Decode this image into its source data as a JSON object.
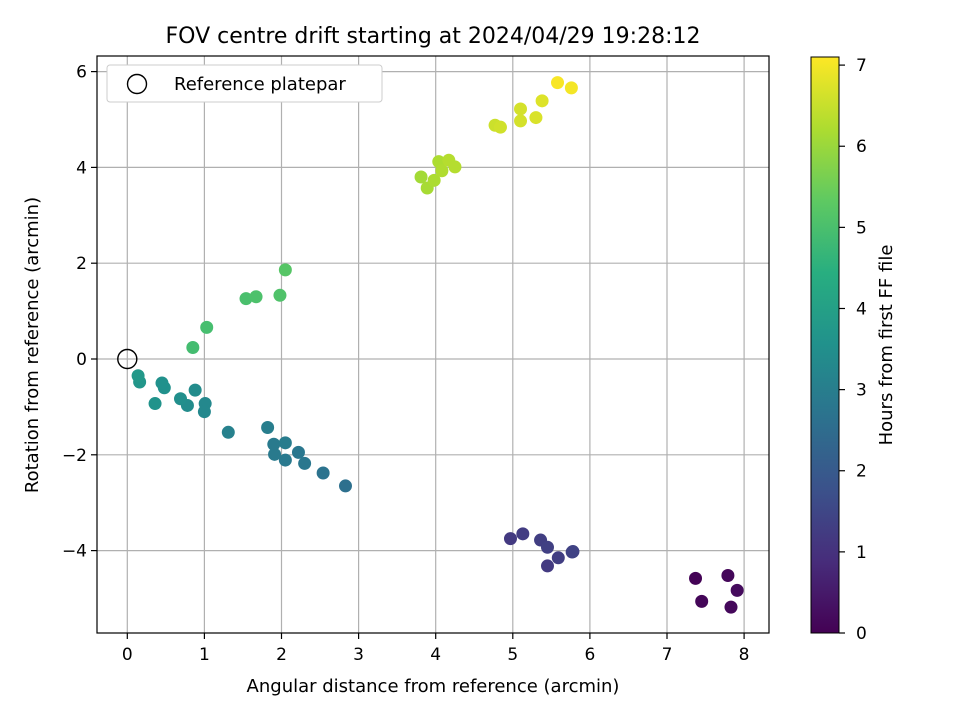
{
  "chart_data": {
    "type": "scatter",
    "title": "FOV centre drift starting at 2024/04/29 19:28:12",
    "xlabel": "Angular distance from reference (arcmin)",
    "ylabel": "Rotation from reference (arcmin)",
    "xlim": [
      -0.4,
      8.3
    ],
    "ylim": [
      -5.75,
      6.3
    ],
    "xticks": [
      "0",
      "1",
      "2",
      "3",
      "4",
      "5",
      "6",
      "7",
      "8"
    ],
    "yticks": [
      "−4",
      "−2",
      "0",
      "2",
      "4",
      "6"
    ],
    "grid": true,
    "legend": {
      "position": "top-left",
      "entries": [
        "Reference platepar"
      ]
    },
    "reference_point": {
      "x": 0,
      "y": 0
    },
    "colorbar": {
      "label": "Hours from first FF file",
      "range": [
        0,
        7.1
      ],
      "ticks": [
        "0",
        "1",
        "2",
        "3",
        "4",
        "5",
        "6",
        "7"
      ],
      "colormap": "viridis"
    },
    "points": [
      {
        "x": 7.37,
        "y": -4.58,
        "t": 0.05
      },
      {
        "x": 7.45,
        "y": -5.06,
        "t": 0.1
      },
      {
        "x": 7.79,
        "y": -4.52,
        "t": 0.12
      },
      {
        "x": 7.83,
        "y": -5.18,
        "t": 0.15
      },
      {
        "x": 7.91,
        "y": -4.83,
        "t": 0.2
      },
      {
        "x": 4.97,
        "y": -3.75,
        "t": 1.2
      },
      {
        "x": 5.13,
        "y": -3.65,
        "t": 1.25
      },
      {
        "x": 5.36,
        "y": -3.78,
        "t": 1.3
      },
      {
        "x": 5.45,
        "y": -3.93,
        "t": 1.35
      },
      {
        "x": 5.45,
        "y": -4.32,
        "t": 1.2
      },
      {
        "x": 5.59,
        "y": -4.15,
        "t": 1.3
      },
      {
        "x": 5.77,
        "y": -4.03,
        "t": 1.4
      },
      {
        "x": 5.78,
        "y": -4.02,
        "t": 1.4
      },
      {
        "x": 2.83,
        "y": -2.65,
        "t": 2.6
      },
      {
        "x": 2.54,
        "y": -2.38,
        "t": 2.7
      },
      {
        "x": 2.3,
        "y": -2.18,
        "t": 2.8
      },
      {
        "x": 2.22,
        "y": -1.95,
        "t": 2.8
      },
      {
        "x": 2.05,
        "y": -2.11,
        "t": 2.85
      },
      {
        "x": 1.91,
        "y": -1.99,
        "t": 2.9
      },
      {
        "x": 1.9,
        "y": -1.78,
        "t": 2.9
      },
      {
        "x": 2.05,
        "y": -1.75,
        "t": 2.95
      },
      {
        "x": 1.82,
        "y": -1.43,
        "t": 3.0
      },
      {
        "x": 1.31,
        "y": -1.53,
        "t": 3.1
      },
      {
        "x": 1.01,
        "y": -0.93,
        "t": 3.3
      },
      {
        "x": 1.0,
        "y": -1.1,
        "t": 3.3
      },
      {
        "x": 0.88,
        "y": -0.65,
        "t": 3.4
      },
      {
        "x": 0.78,
        "y": -0.97,
        "t": 3.4
      },
      {
        "x": 0.69,
        "y": -0.83,
        "t": 3.5
      },
      {
        "x": 0.48,
        "y": -0.6,
        "t": 3.55
      },
      {
        "x": 0.45,
        "y": -0.5,
        "t": 3.55
      },
      {
        "x": 0.36,
        "y": -0.93,
        "t": 3.6
      },
      {
        "x": 0.16,
        "y": -0.48,
        "t": 3.7
      },
      {
        "x": 0.14,
        "y": -0.35,
        "t": 3.75
      },
      {
        "x": 0.85,
        "y": 0.24,
        "t": 4.9
      },
      {
        "x": 1.03,
        "y": 0.66,
        "t": 4.95
      },
      {
        "x": 1.54,
        "y": 1.26,
        "t": 5.0
      },
      {
        "x": 1.67,
        "y": 1.3,
        "t": 5.05
      },
      {
        "x": 1.98,
        "y": 1.33,
        "t": 5.1
      },
      {
        "x": 2.05,
        "y": 1.86,
        "t": 5.2
      },
      {
        "x": 3.81,
        "y": 3.8,
        "t": 6.1
      },
      {
        "x": 3.89,
        "y": 3.57,
        "t": 6.15
      },
      {
        "x": 3.98,
        "y": 3.73,
        "t": 6.2
      },
      {
        "x": 4.04,
        "y": 4.12,
        "t": 6.2
      },
      {
        "x": 4.08,
        "y": 3.93,
        "t": 6.25
      },
      {
        "x": 4.17,
        "y": 4.15,
        "t": 6.3
      },
      {
        "x": 4.25,
        "y": 4.01,
        "t": 6.3
      },
      {
        "x": 4.77,
        "y": 4.88,
        "t": 6.55
      },
      {
        "x": 4.84,
        "y": 4.84,
        "t": 6.6
      },
      {
        "x": 5.1,
        "y": 5.22,
        "t": 6.65
      },
      {
        "x": 5.1,
        "y": 4.97,
        "t": 6.65
      },
      {
        "x": 5.3,
        "y": 5.04,
        "t": 6.7
      },
      {
        "x": 5.38,
        "y": 5.39,
        "t": 6.75
      },
      {
        "x": 5.58,
        "y": 5.77,
        "t": 7.05
      },
      {
        "x": 5.76,
        "y": 5.66,
        "t": 7.0
      }
    ]
  }
}
